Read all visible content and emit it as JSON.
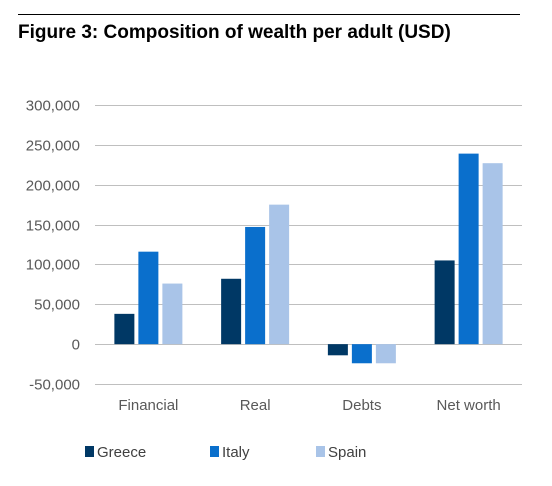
{
  "header": {
    "title": "Figure 3: Composition of wealth per adult (USD)"
  },
  "colors": {
    "Greece": "#003865",
    "Italy": "#0a6fcc",
    "Spain": "#a9c4e8"
  },
  "chart_data": {
    "type": "bar",
    "title": "Figure 3: Composition of wealth per adult (USD)",
    "xlabel": "",
    "ylabel": "",
    "categories": [
      "Financial",
      "Real",
      "Debts",
      "Net worth"
    ],
    "series": [
      {
        "name": "Greece",
        "values": [
          38000,
          82000,
          -14000,
          105000
        ]
      },
      {
        "name": "Italy",
        "values": [
          116000,
          147000,
          -24000,
          239000
        ]
      },
      {
        "name": "Spain",
        "values": [
          76000,
          175000,
          -24000,
          227000
        ]
      }
    ],
    "ylim": [
      -50000,
      300000
    ],
    "yticks": [
      -50000,
      0,
      50000,
      100000,
      150000,
      200000,
      250000,
      300000
    ],
    "ytick_labels": [
      "-50,000",
      "0",
      "50,000",
      "100,000",
      "150,000",
      "200,000",
      "250,000",
      "300,000"
    ],
    "grid": true,
    "legend_position": "bottom"
  }
}
